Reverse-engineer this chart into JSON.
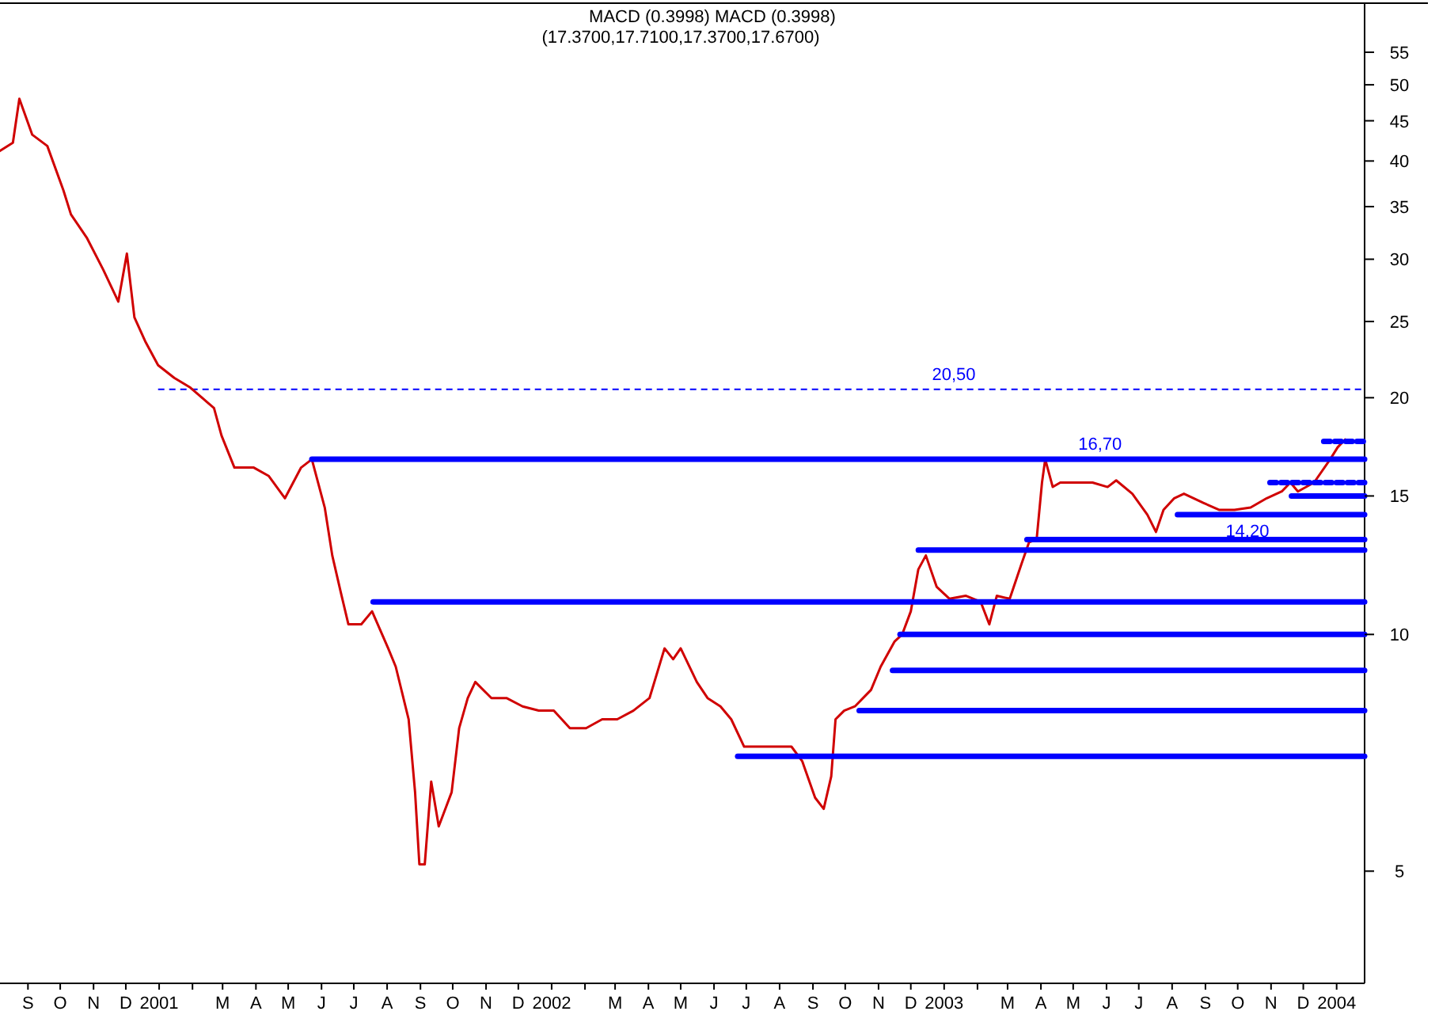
{
  "chart_data": {
    "type": "line",
    "title": "(17.3700,17.7100,17.3700,17.6700)",
    "annotations": [
      "MACD (0.3998) MACD (0.3998)",
      {
        "text": "20,50",
        "x": "2003-01-24",
        "y": 20.5
      },
      {
        "text": "16,70",
        "x": "2003-06-09",
        "y": 16.7
      },
      {
        "text": "14,20",
        "x": "2003-10-24",
        "y": 14.2
      }
    ],
    "log": "y",
    "grid": false,
    "marker": "none",
    "tick_labels": "xy",
    "xlim": [
      "2000-08-20",
      "2004-02-10"
    ],
    "ylim": [
      3.6,
      63.5
    ],
    "yticks": [
      5,
      10,
      15,
      20,
      25,
      30,
      35,
      40,
      45,
      50,
      55
    ],
    "xticks": [
      {
        "value": "2000-09-15",
        "label": "S"
      },
      {
        "value": "2000-10-15",
        "label": "O"
      },
      {
        "value": "2000-11-15",
        "label": "N"
      },
      {
        "value": "2000-12-15",
        "label": "D"
      },
      {
        "value": "2001-01-15",
        "label": "2001"
      },
      {
        "value": "2001-02-15",
        "label": null
      },
      {
        "value": "2001-03-15",
        "label": "M"
      },
      {
        "value": "2001-04-15",
        "label": "A"
      },
      {
        "value": "2001-05-15",
        "label": "M"
      },
      {
        "value": "2001-06-15",
        "label": "J"
      },
      {
        "value": "2001-07-15",
        "label": "J"
      },
      {
        "value": "2001-08-15",
        "label": "A"
      },
      {
        "value": "2001-09-15",
        "label": "S"
      },
      {
        "value": "2001-10-15",
        "label": "O"
      },
      {
        "value": "2001-11-15",
        "label": "N"
      },
      {
        "value": "2001-12-15",
        "label": "D"
      },
      {
        "value": "2002-01-15",
        "label": "2002"
      },
      {
        "value": "2002-02-15",
        "label": null
      },
      {
        "value": "2002-03-15",
        "label": "M"
      },
      {
        "value": "2002-04-15",
        "label": "A"
      },
      {
        "value": "2002-05-15",
        "label": "M"
      },
      {
        "value": "2002-06-15",
        "label": "J"
      },
      {
        "value": "2002-07-15",
        "label": "J"
      },
      {
        "value": "2002-08-15",
        "label": "A"
      },
      {
        "value": "2002-09-15",
        "label": "S"
      },
      {
        "value": "2002-10-15",
        "label": "O"
      },
      {
        "value": "2002-11-15",
        "label": "N"
      },
      {
        "value": "2002-12-15",
        "label": "D"
      },
      {
        "value": "2003-01-15",
        "label": "2003"
      },
      {
        "value": "2003-02-15",
        "label": null
      },
      {
        "value": "2003-03-15",
        "label": "M"
      },
      {
        "value": "2003-04-15",
        "label": "A"
      },
      {
        "value": "2003-05-15",
        "label": "M"
      },
      {
        "value": "2003-06-15",
        "label": "J"
      },
      {
        "value": "2003-07-15",
        "label": "J"
      },
      {
        "value": "2003-08-15",
        "label": "A"
      },
      {
        "value": "2003-09-15",
        "label": "S"
      },
      {
        "value": "2003-10-15",
        "label": "O"
      },
      {
        "value": "2003-11-15",
        "label": "N"
      },
      {
        "value": "2003-12-15",
        "label": "D"
      },
      {
        "value": "2004-01-15",
        "label": "2004"
      }
    ],
    "ref_lines": [
      {
        "axis": "y",
        "value": 20.5,
        "color": "#0000ff",
        "line_style": "dashed"
      }
    ],
    "series": [
      {
        "color": "#d00000",
        "x": [
          "2000-08-20",
          "2000-09-01",
          "2000-09-07",
          "2000-09-19",
          "2000-10-03",
          "2000-10-18",
          "2000-10-25",
          "2000-11-09",
          "2000-11-24",
          "2000-12-08",
          "2000-12-16",
          "2000-12-23",
          "2001-01-02",
          "2001-01-14",
          "2001-01-29",
          "2001-02-13",
          "2001-03-07",
          "2001-03-14",
          "2001-03-26",
          "2001-04-13",
          "2001-04-27",
          "2001-05-12",
          "2001-05-27",
          "2001-06-06",
          "2001-06-18",
          "2001-06-25",
          "2001-07-03",
          "2001-07-10",
          "2001-07-22",
          "2001-08-01",
          "2001-08-16",
          "2001-08-23",
          "2001-09-04",
          "2001-09-10",
          "2001-09-14",
          "2001-09-19",
          "2001-09-25",
          "2001-10-02",
          "2001-10-14",
          "2001-10-21",
          "2001-10-29",
          "2001-11-05",
          "2001-11-20",
          "2001-12-04",
          "2001-12-19",
          "2002-01-03",
          "2002-01-17",
          "2002-02-01",
          "2002-02-16",
          "2002-03-03",
          "2002-03-17",
          "2002-04-01",
          "2002-04-16",
          "2002-04-30",
          "2002-05-08",
          "2002-05-15",
          "2002-05-30",
          "2002-06-09",
          "2002-06-21",
          "2002-07-01",
          "2002-07-13",
          "2002-07-28",
          "2002-08-11",
          "2002-08-26",
          "2002-09-05",
          "2002-09-17",
          "2002-09-25",
          "2002-10-02",
          "2002-10-06",
          "2002-10-14",
          "2002-10-24",
          "2002-11-08",
          "2002-11-17",
          "2002-11-30",
          "2002-12-07",
          "2002-12-15",
          "2002-12-22",
          "2002-12-29",
          "2003-01-08",
          "2003-01-20",
          "2003-02-04",
          "2003-02-18",
          "2003-02-26",
          "2003-03-05",
          "2003-03-17",
          "2003-03-28",
          "2003-04-04",
          "2003-04-11",
          "2003-04-16",
          "2003-04-19",
          "2003-04-26",
          "2003-05-03",
          "2003-05-18",
          "2003-06-02",
          "2003-06-16",
          "2003-06-24",
          "2003-07-09",
          "2003-07-23",
          "2003-07-31",
          "2003-08-07",
          "2003-08-17",
          "2003-08-26",
          "2003-09-13",
          "2003-09-28",
          "2003-10-12",
          "2003-10-27",
          "2003-11-11",
          "2003-11-25",
          "2003-12-03",
          "2003-12-10",
          "2003-12-25",
          "2004-01-09",
          "2004-01-16",
          "2004-01-23"
        ],
        "values": [
          41.2,
          42.2,
          48.0,
          43.2,
          41.8,
          36.7,
          34.2,
          31.9,
          29.1,
          26.5,
          30.5,
          25.3,
          23.6,
          22.0,
          21.2,
          20.6,
          19.4,
          17.9,
          16.3,
          16.3,
          15.9,
          14.9,
          16.3,
          16.7,
          14.5,
          12.6,
          11.3,
          10.3,
          10.3,
          10.7,
          9.6,
          9.1,
          7.8,
          6.3,
          5.1,
          5.1,
          6.5,
          5.7,
          6.3,
          7.6,
          8.3,
          8.7,
          8.3,
          8.3,
          8.1,
          8.0,
          8.0,
          7.6,
          7.6,
          7.8,
          7.8,
          8.0,
          8.3,
          9.6,
          9.3,
          9.6,
          8.7,
          8.3,
          8.1,
          7.8,
          7.2,
          7.2,
          7.2,
          7.2,
          6.9,
          6.2,
          6.0,
          6.6,
          7.8,
          8.0,
          8.1,
          8.5,
          9.1,
          9.8,
          10.0,
          10.7,
          12.1,
          12.6,
          11.5,
          11.1,
          11.2,
          11.0,
          10.3,
          11.2,
          11.1,
          12.3,
          13.1,
          13.2,
          15.6,
          16.7,
          15.4,
          15.6,
          15.6,
          15.6,
          15.4,
          15.7,
          15.1,
          14.2,
          13.5,
          14.4,
          14.9,
          15.1,
          14.7,
          14.4,
          14.4,
          14.5,
          14.9,
          15.2,
          15.6,
          15.2,
          15.6,
          16.7,
          17.3,
          17.7
        ]
      },
      {
        "color": "#0000ff",
        "x": [
          "2001-06-06",
          "2004-02-10"
        ],
        "values": [
          16.7,
          16.7
        ]
      },
      {
        "color": "#0000ff",
        "x": [
          "2001-08-02",
          "2004-02-10"
        ],
        "values": [
          11.0,
          11.0
        ]
      },
      {
        "color": "#0000ff",
        "x": [
          "2002-07-07",
          "2004-02-10"
        ],
        "values": [
          7.0,
          7.0
        ]
      },
      {
        "color": "#0000ff",
        "x": [
          "2002-10-28",
          "2004-02-10"
        ],
        "values": [
          8.0,
          8.0
        ]
      },
      {
        "color": "#0000ff",
        "x": [
          "2002-11-28",
          "2004-02-10"
        ],
        "values": [
          9.0,
          9.0
        ]
      },
      {
        "color": "#0000ff",
        "x": [
          "2002-12-05",
          "2004-02-10"
        ],
        "values": [
          10.0,
          10.0
        ]
      },
      {
        "color": "#0000ff",
        "x": [
          "2002-12-22",
          "2004-02-10"
        ],
        "values": [
          12.8,
          12.8
        ]
      },
      {
        "color": "#0000ff",
        "x": [
          "2003-04-02",
          "2004-02-10"
        ],
        "values": [
          13.2,
          13.2
        ]
      },
      {
        "color": "#0000ff",
        "x": [
          "2003-08-20",
          "2004-02-10"
        ],
        "values": [
          14.2,
          14.2
        ]
      },
      {
        "color": "#0000ff",
        "x": [
          "2003-12-04",
          "2004-02-10"
        ],
        "values": [
          15.0,
          15.0
        ]
      },
      {
        "color": "#0000ff",
        "x": [
          "2003-11-14",
          "2004-02-10"
        ],
        "values": [
          15.6,
          15.6
        ],
        "line_style": "dashed"
      },
      {
        "color": "#0000ff",
        "x": [
          "2004-01-03",
          "2004-02-10"
        ],
        "values": [
          17.6,
          17.6
        ],
        "line_style": "dashed"
      }
    ]
  }
}
